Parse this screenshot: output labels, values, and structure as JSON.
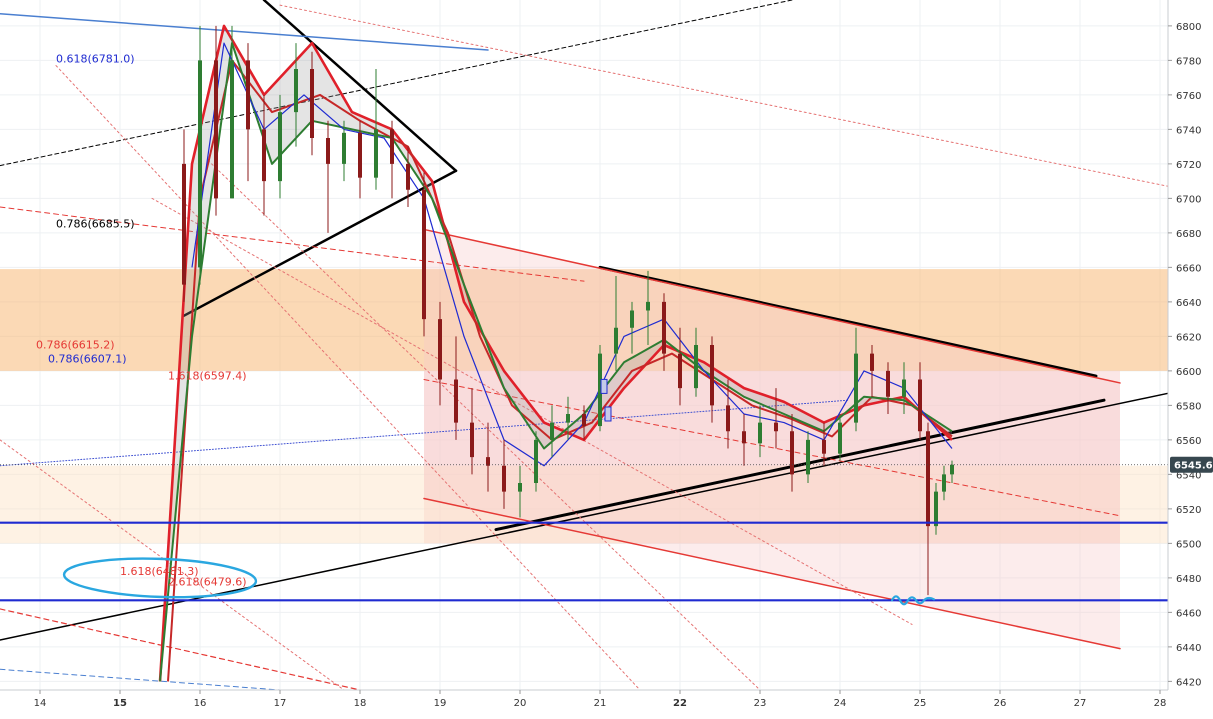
{
  "colors": {
    "background": "#ffffff",
    "grid": "#eef0f3",
    "up_candle": "#2e7d32",
    "down_candle": "#8b1a1a",
    "price_tag_bg": "#37474f",
    "support_line": "#1f2bd1",
    "channel": "#e53935",
    "orange_zone": "#f7b978",
    "pink_zone": "#f6c9c9",
    "annotation_circle": "#2aa7e0"
  },
  "chart_data": {
    "type": "candlestick",
    "title": "",
    "xlabel": "",
    "ylabel": "",
    "x_axis": {
      "range": [
        13.5,
        28.1
      ],
      "ticks": [
        {
          "value": 14,
          "label": "14"
        },
        {
          "value": 15,
          "label": "15"
        },
        {
          "value": 16,
          "label": "16"
        },
        {
          "value": 17,
          "label": "17"
        },
        {
          "value": 18,
          "label": "18"
        },
        {
          "value": 19,
          "label": "19"
        },
        {
          "value": 20,
          "label": "20"
        },
        {
          "value": 21,
          "label": "21"
        },
        {
          "value": 22,
          "label": "22"
        },
        {
          "value": 23,
          "label": "23"
        },
        {
          "value": 24,
          "label": "24"
        },
        {
          "value": 25,
          "label": "25"
        },
        {
          "value": 26,
          "label": "26"
        },
        {
          "value": 27,
          "label": "27"
        },
        {
          "value": 28,
          "label": "28"
        }
      ]
    },
    "y_axis": {
      "range": [
        6415,
        6815
      ],
      "ticks": [
        6420,
        6440,
        6460,
        6480,
        6500,
        6520,
        6540,
        6560,
        6580,
        6600,
        6620,
        6640,
        6660,
        6680,
        6700,
        6720,
        6740,
        6760,
        6780,
        6800
      ]
    },
    "grid": true,
    "last_price": {
      "value": 6545.6,
      "label": "6545.6"
    },
    "candles_ohlc": [
      [
        15.8,
        6720,
        6740,
        6640,
        6650
      ],
      [
        16.0,
        6660,
        6800,
        6650,
        6780
      ],
      [
        16.2,
        6780,
        6800,
        6690,
        6700
      ],
      [
        16.4,
        6700,
        6800,
        6700,
        6780
      ],
      [
        16.6,
        6780,
        6790,
        6710,
        6740
      ],
      [
        16.8,
        6740,
        6760,
        6690,
        6710
      ],
      [
        17.0,
        6710,
        6760,
        6700,
        6750
      ],
      [
        17.2,
        6750,
        6790,
        6730,
        6775
      ],
      [
        17.4,
        6775,
        6785,
        6725,
        6735
      ],
      [
        17.6,
        6735,
        6745,
        6680,
        6720
      ],
      [
        17.8,
        6720,
        6745,
        6710,
        6738
      ],
      [
        18.0,
        6738,
        6745,
        6700,
        6712
      ],
      [
        18.2,
        6712,
        6775,
        6705,
        6740
      ],
      [
        18.4,
        6740,
        6745,
        6700,
        6720
      ],
      [
        18.6,
        6720,
        6730,
        6695,
        6705
      ],
      [
        18.8,
        6705,
        6715,
        6620,
        6630
      ],
      [
        19.0,
        6630,
        6640,
        6580,
        6595
      ],
      [
        19.2,
        6595,
        6620,
        6560,
        6570
      ],
      [
        19.4,
        6570,
        6590,
        6540,
        6550
      ],
      [
        19.6,
        6550,
        6570,
        6530,
        6545
      ],
      [
        19.8,
        6545,
        6560,
        6520,
        6530
      ],
      [
        20.0,
        6530,
        6545,
        6515,
        6535
      ],
      [
        20.2,
        6535,
        6565,
        6530,
        6560
      ],
      [
        20.4,
        6560,
        6580,
        6550,
        6570
      ],
      [
        20.6,
        6570,
        6585,
        6560,
        6575
      ],
      [
        20.8,
        6575,
        6580,
        6560,
        6568
      ],
      [
        21.0,
        6568,
        6615,
        6565,
        6610
      ],
      [
        21.2,
        6610,
        6655,
        6600,
        6625
      ],
      [
        21.4,
        6625,
        6640,
        6610,
        6635
      ],
      [
        21.6,
        6635,
        6658,
        6615,
        6640
      ],
      [
        21.8,
        6640,
        6645,
        6600,
        6610
      ],
      [
        22.0,
        6610,
        6625,
        6580,
        6590
      ],
      [
        22.2,
        6590,
        6625,
        6585,
        6615
      ],
      [
        22.4,
        6615,
        6620,
        6570,
        6580
      ],
      [
        22.6,
        6580,
        6595,
        6555,
        6565
      ],
      [
        22.8,
        6565,
        6575,
        6545,
        6558
      ],
      [
        23.0,
        6558,
        6580,
        6550,
        6570
      ],
      [
        23.2,
        6570,
        6590,
        6555,
        6565
      ],
      [
        23.4,
        6565,
        6575,
        6530,
        6540
      ],
      [
        23.6,
        6540,
        6565,
        6535,
        6560
      ],
      [
        23.8,
        6560,
        6570,
        6545,
        6552
      ],
      [
        24.0,
        6552,
        6575,
        6548,
        6570
      ],
      [
        24.2,
        6570,
        6625,
        6565,
        6610
      ],
      [
        24.4,
        6610,
        6615,
        6585,
        6600
      ],
      [
        24.6,
        6600,
        6605,
        6575,
        6585
      ],
      [
        24.8,
        6585,
        6605,
        6575,
        6595
      ],
      [
        25.0,
        6595,
        6605,
        6560,
        6565
      ],
      [
        25.1,
        6565,
        6570,
        6470,
        6510
      ],
      [
        25.2,
        6510,
        6535,
        6505,
        6530
      ],
      [
        25.3,
        6530,
        6545,
        6525,
        6540
      ],
      [
        25.4,
        6540,
        6548,
        6535,
        6545.6
      ]
    ],
    "moving_averages": [
      {
        "color": "#e0202a",
        "width": 2.6,
        "points": [
          [
            15.5,
            6420
          ],
          [
            15.9,
            6720
          ],
          [
            16.3,
            6800
          ],
          [
            16.8,
            6760
          ],
          [
            17.4,
            6790
          ],
          [
            17.9,
            6750
          ],
          [
            18.4,
            6740
          ],
          [
            18.9,
            6710
          ],
          [
            19.3,
            6640
          ],
          [
            19.8,
            6600
          ],
          [
            20.3,
            6570
          ],
          [
            20.8,
            6560
          ],
          [
            21.3,
            6590
          ],
          [
            21.8,
            6615
          ],
          [
            22.3,
            6605
          ],
          [
            22.8,
            6590
          ],
          [
            23.3,
            6582
          ],
          [
            23.8,
            6570
          ],
          [
            24.3,
            6580
          ],
          [
            24.8,
            6585
          ],
          [
            25.4,
            6560
          ]
        ]
      },
      {
        "color": "#c62828",
        "width": 2,
        "points": [
          [
            15.6,
            6420
          ],
          [
            16.0,
            6700
          ],
          [
            16.4,
            6780
          ],
          [
            16.9,
            6750
          ],
          [
            17.5,
            6760
          ],
          [
            18.0,
            6745
          ],
          [
            18.6,
            6730
          ],
          [
            19.1,
            6680
          ],
          [
            19.5,
            6620
          ],
          [
            19.9,
            6580
          ],
          [
            20.4,
            6560
          ],
          [
            20.9,
            6570
          ],
          [
            21.4,
            6600
          ],
          [
            21.9,
            6610
          ],
          [
            22.4,
            6595
          ],
          [
            22.9,
            6580
          ],
          [
            23.4,
            6572
          ],
          [
            23.9,
            6562
          ],
          [
            24.4,
            6585
          ],
          [
            24.9,
            6580
          ],
          [
            25.4,
            6562
          ]
        ]
      },
      {
        "color": "#2e7d32",
        "width": 2,
        "points": [
          [
            15.5,
            6420
          ],
          [
            15.9,
            6620
          ],
          [
            16.4,
            6790
          ],
          [
            16.9,
            6720
          ],
          [
            17.4,
            6745
          ],
          [
            17.9,
            6740
          ],
          [
            18.4,
            6735
          ],
          [
            18.9,
            6700
          ],
          [
            19.3,
            6650
          ],
          [
            19.8,
            6590
          ],
          [
            20.3,
            6555
          ],
          [
            20.8,
            6575
          ],
          [
            21.3,
            6605
          ],
          [
            21.8,
            6618
          ],
          [
            22.3,
            6600
          ],
          [
            22.8,
            6585
          ],
          [
            23.3,
            6575
          ],
          [
            23.8,
            6565
          ],
          [
            24.3,
            6585
          ],
          [
            24.8,
            6583
          ],
          [
            25.4,
            6565
          ]
        ]
      },
      {
        "color": "#1f2bd1",
        "width": 1.2,
        "points": [
          [
            15.9,
            6660
          ],
          [
            16.3,
            6790
          ],
          [
            16.8,
            6740
          ],
          [
            17.3,
            6760
          ],
          [
            17.8,
            6740
          ],
          [
            18.3,
            6735
          ],
          [
            18.8,
            6700
          ],
          [
            19.3,
            6620
          ],
          [
            19.8,
            6560
          ],
          [
            20.3,
            6545
          ],
          [
            20.8,
            6570
          ],
          [
            21.3,
            6620
          ],
          [
            21.8,
            6630
          ],
          [
            22.3,
            6600
          ],
          [
            22.8,
            6575
          ],
          [
            23.3,
            6570
          ],
          [
            23.8,
            6560
          ],
          [
            24.3,
            6600
          ],
          [
            24.8,
            6590
          ],
          [
            25.4,
            6555
          ]
        ]
      }
    ],
    "zones": [
      {
        "name": "orange-zone",
        "x": [
          13.5,
          28.1
        ],
        "y": [
          6600,
          6659
        ],
        "color": "#f7b978",
        "opacity": 0.55
      },
      {
        "name": "pink-zone",
        "x": [
          18.8,
          27.5
        ],
        "y": [
          6500,
          6600
        ],
        "color": "#f6c9c9",
        "opacity": 0.45
      },
      {
        "name": "light-orange-band",
        "x": [
          13.5,
          28.1
        ],
        "y": [
          6500,
          6545
        ],
        "color": "#fde3c4",
        "opacity": 0.45
      }
    ],
    "support_levels": [
      {
        "y": 6512,
        "color": "#1f2bd1"
      },
      {
        "y": 6467,
        "color": "#1f2bd1"
      }
    ],
    "trendlines": [
      {
        "from": [
          19.7,
          6508
        ],
        "to": [
          27.3,
          6583
        ],
        "color": "#000000",
        "width": 3
      },
      {
        "from": [
          13.5,
          6444
        ],
        "to": [
          28.1,
          6587
        ],
        "color": "#000000",
        "width": 1.5
      },
      {
        "from": [
          21.0,
          6660
        ],
        "to": [
          27.2,
          6597
        ],
        "color": "#000000",
        "width": 3
      },
      {
        "from": [
          16.8,
          6815
        ],
        "to": [
          19.2,
          6716
        ],
        "color": "#000000",
        "width": 2.5
      },
      {
        "from": [
          15.8,
          6632
        ],
        "to": [
          19.2,
          6716
        ],
        "color": "#000000",
        "width": 2.5
      },
      {
        "from": [
          18.8,
          6682
        ],
        "to": [
          27.5,
          6593
        ],
        "color": "#e53935",
        "width": 1.5
      },
      {
        "from": [
          18.8,
          6526
        ],
        "to": [
          27.5,
          6439
        ],
        "color": "#e53935",
        "width": 1.5
      },
      {
        "from": [
          13.5,
          6807
        ],
        "to": [
          19.6,
          6786
        ],
        "color": "#4a7fd0",
        "width": 1.5
      },
      {
        "from": [
          13.5,
          6719
        ],
        "to": [
          23.4,
          6815
        ],
        "color": "#000000",
        "width": 1,
        "dash": "4,3"
      },
      {
        "from": [
          13.5,
          6695
        ],
        "to": [
          20.8,
          6652
        ],
        "color": "#e53935",
        "width": 1,
        "dash": "5,4"
      },
      {
        "from": [
          18.8,
          6595
        ],
        "to": [
          27.5,
          6516
        ],
        "color": "#e53935",
        "width": 1,
        "dash": "5,4"
      },
      {
        "from": [
          13.5,
          6545
        ],
        "to": [
          24.1,
          6583
        ],
        "color": "#3d4fd1",
        "width": 1,
        "dash": "1,2"
      },
      {
        "from": [
          13.5,
          6462
        ],
        "to": [
          18.0,
          6415
        ],
        "color": "#e53935",
        "width": 1.2,
        "dash": "5,4"
      },
      {
        "from": [
          13.5,
          6427
        ],
        "to": [
          17.0,
          6415
        ],
        "color": "#4a7fd0",
        "width": 1,
        "dash": "5,4"
      },
      {
        "from": [
          14.2,
          6777
        ],
        "to": [
          21.5,
          6415
        ],
        "color": "#e57373",
        "width": 1,
        "dash": "2,3"
      },
      {
        "from": [
          15.4,
          6700
        ],
        "to": [
          24.9,
          6453
        ],
        "color": "#e57373",
        "width": 1,
        "dash": "2,3"
      },
      {
        "from": [
          17.0,
          6812
        ],
        "to": [
          28.1,
          6707
        ],
        "color": "#e57373",
        "width": 1,
        "dash": "2,3"
      },
      {
        "from": [
          13.5,
          6560
        ],
        "to": [
          17.8,
          6415
        ],
        "color": "#e57373",
        "width": 1,
        "dash": "2,3"
      },
      {
        "from": [
          16.1,
          6722
        ],
        "to": [
          23.0,
          6415
        ],
        "color": "#e57373",
        "width": 1,
        "dash": "2,3"
      }
    ],
    "fib_labels": [
      {
        "text": "0.618(6781.0)",
        "x": 14.2,
        "y": 6781,
        "color": "#1f2bd1"
      },
      {
        "text": "0.786(6685.5)",
        "x": 14.2,
        "y": 6685.5,
        "color": "#000000"
      },
      {
        "text": "0.786(6615.2)",
        "x": 13.95,
        "y": 6615.2,
        "color": "#e53935"
      },
      {
        "text": "0.786(6607.1)",
        "x": 14.1,
        "y": 6607.1,
        "color": "#1f2bd1"
      },
      {
        "text": "1.618(6597.4)",
        "x": 15.6,
        "y": 6597.4,
        "color": "#e53935"
      },
      {
        "text": "1.618(6481.3)",
        "x": 15.0,
        "y": 6484,
        "color": "#e53935"
      },
      {
        "text": "2.618(6479.6)",
        "x": 15.6,
        "y": 6478,
        "color": "#e53935"
      }
    ],
    "markers": [
      {
        "x": 21.1,
        "y": 6575,
        "color": "#1f2bd1"
      },
      {
        "x": 21.05,
        "y": 6591,
        "color": "#1f2bd1"
      }
    ]
  }
}
